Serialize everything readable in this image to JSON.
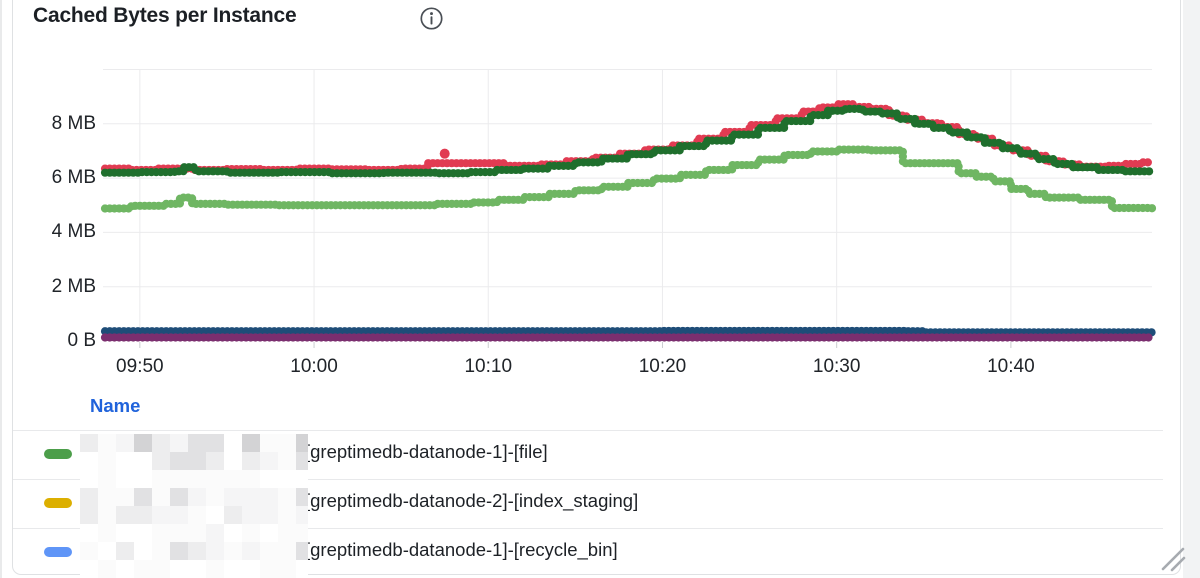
{
  "panel": {
    "title": "Cached Bytes per Instance",
    "info_icon": "info-icon",
    "border_color": "#dfe1e3"
  },
  "chart_data": {
    "type": "line",
    "title": "Cached Bytes per Instance",
    "style": "thick dotted stepped time-series lines, no fill, light gray grid",
    "x_axis": {
      "unit": "time",
      "tick_labels": [
        "09:50",
        "10:00",
        "10:10",
        "10:20",
        "10:30",
        "10:40"
      ],
      "tick_minutes": [
        590,
        600,
        610,
        620,
        630,
        640
      ],
      "range_minutes": [
        588,
        648.1
      ]
    },
    "y_axis": {
      "unit": "bytes",
      "tick_labels": [
        "0 B",
        "2 MB",
        "4 MB",
        "6 MB",
        "8 MB"
      ],
      "tick_values_mb": [
        0,
        2,
        4,
        6,
        8
      ],
      "range_mb": [
        0,
        10
      ],
      "grid": true
    },
    "series": [
      {
        "name": "red-series",
        "color": "#e13b52",
        "points": [
          [
            588,
            6.35
          ],
          [
            589.5,
            6.3
          ],
          [
            591,
            6.35
          ],
          [
            593,
            6.3
          ],
          [
            595,
            6.33
          ],
          [
            597,
            6.3
          ],
          [
            599,
            6.35
          ],
          [
            601,
            6.32
          ],
          [
            603,
            6.3
          ],
          [
            605,
            6.35
          ],
          [
            606.5,
            6.55
          ],
          [
            609,
            6.55
          ],
          [
            611,
            6.45
          ],
          [
            613,
            6.5
          ],
          [
            614.5,
            6.62
          ],
          [
            616,
            6.75
          ],
          [
            617.5,
            6.9
          ],
          [
            619,
            7.05
          ],
          [
            620.5,
            7.2
          ],
          [
            622,
            7.45
          ],
          [
            623.5,
            7.7
          ],
          [
            625,
            7.95
          ],
          [
            626.5,
            8.2
          ],
          [
            628,
            8.45
          ],
          [
            629,
            8.6
          ],
          [
            630,
            8.72
          ],
          [
            631,
            8.62
          ],
          [
            632,
            8.55
          ],
          [
            633,
            8.3
          ],
          [
            634,
            8.15
          ],
          [
            635,
            8.02
          ],
          [
            636,
            7.88
          ],
          [
            637,
            7.62
          ],
          [
            638,
            7.45
          ],
          [
            639,
            7.2
          ],
          [
            640,
            7.02
          ],
          [
            641,
            6.82
          ],
          [
            642,
            6.62
          ],
          [
            643,
            6.5
          ],
          [
            644,
            6.42
          ],
          [
            645.5,
            6.45
          ],
          [
            646.5,
            6.52
          ],
          [
            647.5,
            6.58
          ],
          [
            648.1,
            6.58
          ]
        ]
      },
      {
        "name": "dark-green-series",
        "color": "#1f6f2d",
        "points": [
          [
            588,
            6.2
          ],
          [
            590,
            6.22
          ],
          [
            592,
            6.25
          ],
          [
            592.5,
            6.4
          ],
          [
            593.2,
            6.25
          ],
          [
            595,
            6.2
          ],
          [
            598,
            6.22
          ],
          [
            601,
            6.18
          ],
          [
            604,
            6.2
          ],
          [
            607,
            6.18
          ],
          [
            609,
            6.22
          ],
          [
            610.5,
            6.3
          ],
          [
            612,
            6.35
          ],
          [
            613.5,
            6.45
          ],
          [
            615,
            6.58
          ],
          [
            616.5,
            6.72
          ],
          [
            618,
            6.88
          ],
          [
            619.5,
            7.02
          ],
          [
            621,
            7.18
          ],
          [
            622.5,
            7.38
          ],
          [
            624,
            7.6
          ],
          [
            625.5,
            7.85
          ],
          [
            627,
            8.1
          ],
          [
            628.5,
            8.32
          ],
          [
            629.5,
            8.48
          ],
          [
            630.5,
            8.55
          ],
          [
            631.5,
            8.45
          ],
          [
            632.5,
            8.38
          ],
          [
            633.5,
            8.18
          ],
          [
            634.5,
            8.0
          ],
          [
            635.5,
            7.85
          ],
          [
            636.5,
            7.68
          ],
          [
            637.5,
            7.5
          ],
          [
            638.5,
            7.3
          ],
          [
            639.5,
            7.1
          ],
          [
            640.5,
            6.9
          ],
          [
            641.5,
            6.7
          ],
          [
            642.5,
            6.52
          ],
          [
            643.5,
            6.4
          ],
          [
            645,
            6.3
          ],
          [
            646.5,
            6.25
          ],
          [
            648.1,
            6.3
          ]
        ]
      },
      {
        "name": "light-green-series",
        "color": "#6fb663",
        "points": [
          [
            588,
            4.88
          ],
          [
            589.5,
            4.98
          ],
          [
            591.5,
            5.05
          ],
          [
            592.3,
            5.28
          ],
          [
            593,
            5.05
          ],
          [
            595,
            5.02
          ],
          [
            598,
            5.0
          ],
          [
            601,
            5.0
          ],
          [
            604,
            5.0
          ],
          [
            607,
            5.05
          ],
          [
            609,
            5.1
          ],
          [
            610.5,
            5.2
          ],
          [
            612,
            5.3
          ],
          [
            613.5,
            5.42
          ],
          [
            615,
            5.55
          ],
          [
            616.5,
            5.68
          ],
          [
            618,
            5.82
          ],
          [
            619.5,
            5.98
          ],
          [
            621,
            6.12
          ],
          [
            622.5,
            6.3
          ],
          [
            624,
            6.48
          ],
          [
            625.5,
            6.68
          ],
          [
            627,
            6.85
          ],
          [
            628.5,
            6.98
          ],
          [
            630,
            7.05
          ],
          [
            632,
            7.02
          ],
          [
            633.8,
            6.55
          ],
          [
            636.3,
            6.55
          ],
          [
            637,
            6.18
          ],
          [
            638,
            6.05
          ],
          [
            639,
            5.88
          ],
          [
            640,
            5.6
          ],
          [
            641,
            5.42
          ],
          [
            642,
            5.28
          ],
          [
            644,
            5.2
          ],
          [
            645.8,
            4.9
          ],
          [
            648.1,
            4.88
          ]
        ]
      },
      {
        "name": "navy-series",
        "color": "#1e4d78",
        "points": [
          [
            588,
            0.36
          ],
          [
            620,
            0.37
          ],
          [
            634,
            0.36
          ],
          [
            635,
            0.32
          ],
          [
            648.1,
            0.32
          ]
        ]
      },
      {
        "name": "purple-series",
        "color": "#7b2e6f",
        "points": [
          [
            588,
            0.13
          ],
          [
            648.1,
            0.13
          ]
        ]
      }
    ],
    "outlier_point": {
      "series": "red-series",
      "minute": 607.5,
      "value_mb": 6.9,
      "color": "#e13b52"
    },
    "legend_position": "bottom-table"
  },
  "legend": {
    "header": "Name",
    "rows": [
      {
        "marker_color": "#4c9e4a",
        "redacted_prefix": true,
        "visible_text": "[greptimedb-datanode-1]-[file]"
      },
      {
        "marker_color": "#dcaf00",
        "redacted_prefix": true,
        "visible_text": "[greptimedb-datanode-2]-[index_staging]"
      },
      {
        "marker_color": "#5f95f7",
        "redacted_prefix": true,
        "visible_text": "[greptimedb-datanode-1]-[recycle_bin]"
      }
    ]
  },
  "colors": {
    "grid": "#ebebed",
    "tick_notch": "#cbcdd0",
    "separator": "#e8e9eb",
    "title_text": "#1c2025",
    "tick_text": "#202429",
    "legend_header_blue": "#2063db",
    "outside_gray": "#f2f3f4"
  }
}
